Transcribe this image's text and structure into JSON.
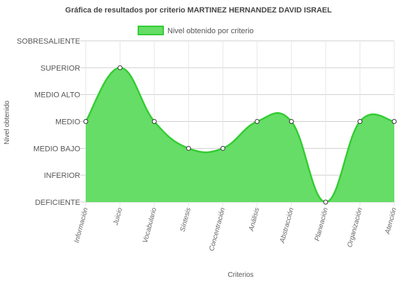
{
  "chart_data": {
    "type": "area",
    "title": "Gráfica de resultados por criterio MARTINEZ HERNANDEZ DAVID ISRAEL",
    "xlabel": "Criterios",
    "ylabel": "Nivel obtenido",
    "levels": [
      "DEFICIENTE",
      "INFERIOR",
      "MEDIO BAJO",
      "MEDIO",
      "MEDIO ALTO",
      "SUPERIOR",
      "SOBRESALIENTE"
    ],
    "ylim": [
      0,
      6
    ],
    "categories": [
      "Información",
      "Juicio",
      "Vocabulario",
      "Síntesis",
      "Concentración",
      "Análisis",
      "Abstracción",
      "Planeación",
      "Organización",
      "Atención"
    ],
    "series": [
      {
        "name": "Nivel obtenido por criterio",
        "values": [
          3,
          5,
          3,
          2,
          2,
          3,
          3,
          0,
          3,
          3
        ],
        "color": "#33cc33",
        "fill": "#66dd66"
      }
    ],
    "grid": true,
    "legend": "top-center"
  }
}
